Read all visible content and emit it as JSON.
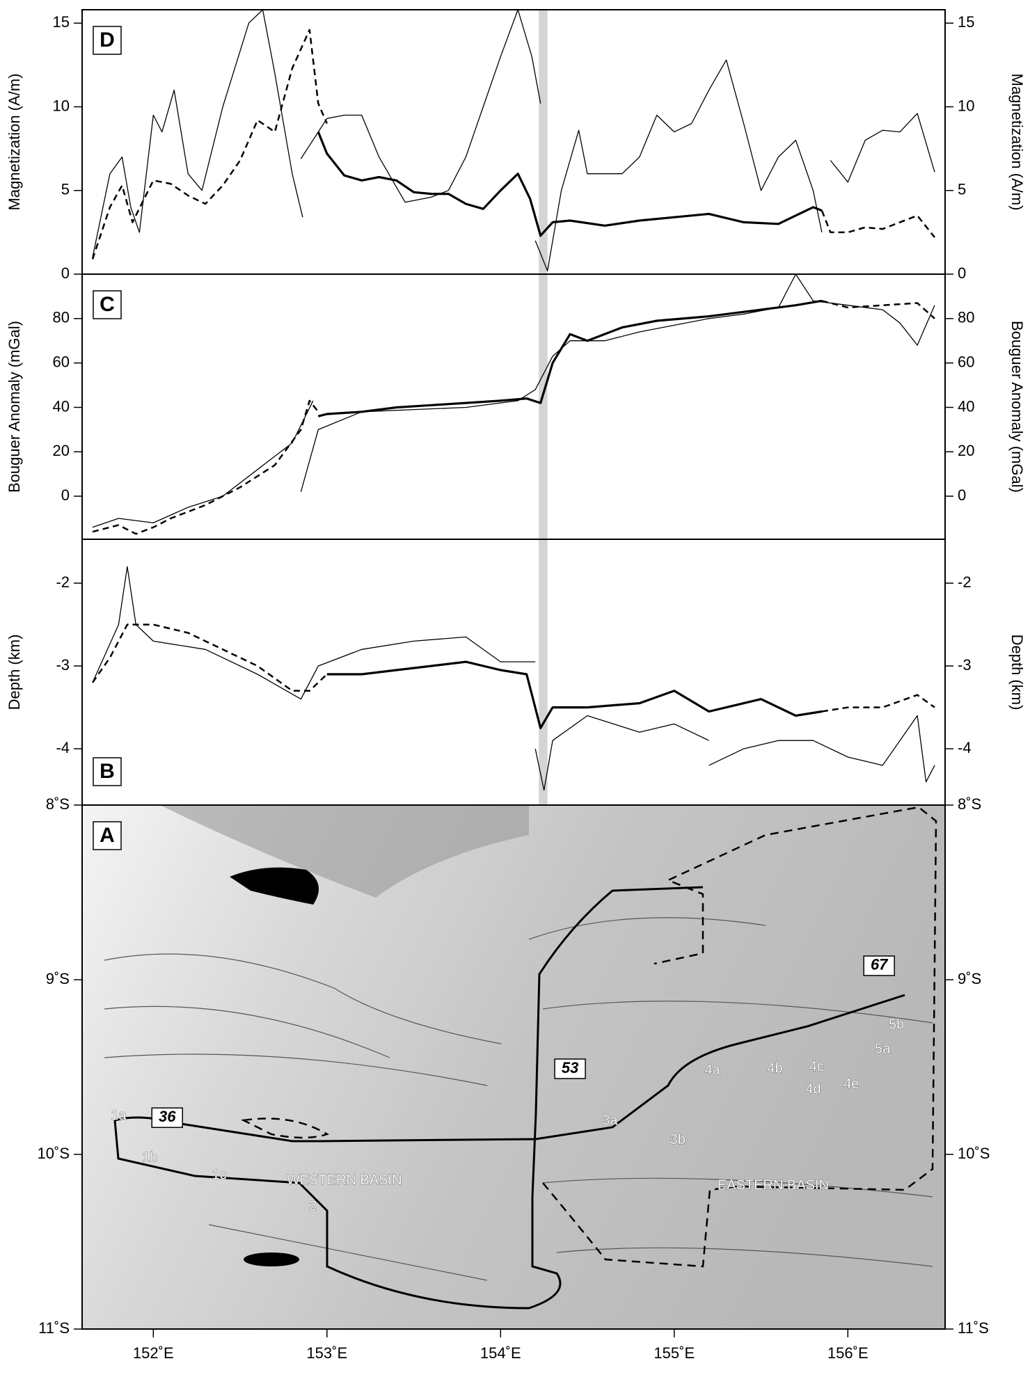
{
  "chart_data": [
    {
      "type": "line",
      "label": "D",
      "ylabel": "Magnetization (A/m)",
      "xlim": [
        151.59,
        156.56
      ],
      "ylim": [
        0,
        15.8
      ],
      "yticks": [
        0,
        5,
        10,
        15
      ],
      "highlight_x": [
        154.22,
        154.27
      ],
      "series": [
        {
          "style": "thin",
          "color": "#000000",
          "x": [
            151.65,
            151.75,
            151.82,
            151.87,
            151.92,
            152.0,
            152.05,
            152.12,
            152.2,
            152.28,
            152.4,
            152.55,
            152.63,
            152.7,
            152.8,
            152.86,
            null,
            152.85,
            153.0,
            153.1,
            153.2,
            153.3,
            153.45,
            153.6,
            153.7,
            153.8,
            153.9,
            154.0,
            154.1,
            154.18,
            154.23,
            null,
            154.2,
            154.27,
            154.35,
            154.45,
            154.5,
            154.6,
            154.7,
            154.8,
            154.9,
            155.0,
            155.1,
            155.2,
            155.3,
            155.4,
            155.5,
            155.6,
            155.7,
            155.8,
            155.85,
            null,
            155.9,
            156.0,
            156.1,
            156.2,
            156.3,
            156.4,
            156.5
          ],
          "values": [
            1,
            6,
            7,
            4,
            2.5,
            9.5,
            8.5,
            11,
            6,
            5,
            10,
            15,
            15.8,
            12,
            6,
            3.4,
            null,
            6.9,
            9.3,
            9.5,
            9.5,
            7,
            4.3,
            4.6,
            5,
            7,
            10,
            13,
            15.8,
            13,
            10.2,
            null,
            2,
            0.2,
            5,
            8.6,
            6,
            6,
            6,
            7,
            9.5,
            8.5,
            9,
            11,
            12.8,
            9,
            5,
            7,
            8,
            5,
            2.5,
            null,
            6.8,
            5.5,
            8,
            8.6,
            8.5,
            9.6,
            6.1
          ]
        },
        {
          "style": "dashed",
          "color": "#000000",
          "x": [
            151.65,
            151.75,
            151.82,
            151.88,
            152.0,
            152.1,
            152.2,
            152.3,
            152.4,
            152.5,
            152.6,
            152.7,
            152.8,
            152.9,
            152.95,
            153.0,
            null,
            155.85,
            155.9,
            156.0,
            156.1,
            156.2,
            156.3,
            156.4,
            156.5
          ],
          "values": [
            0.9,
            4,
            5.3,
            3.1,
            5.6,
            5.4,
            4.7,
            4.2,
            5.3,
            6.8,
            9.2,
            8.5,
            12.3,
            14.6,
            10.2,
            9,
            null,
            3.8,
            2.5,
            2.5,
            2.8,
            2.7,
            3.1,
            3.5,
            2.2
          ]
        },
        {
          "style": "thick",
          "color": "#000000",
          "x": [
            152.95,
            153.0,
            153.1,
            153.2,
            153.3,
            153.4,
            153.5,
            153.6,
            153.7,
            153.8,
            153.9,
            154.0,
            154.1,
            154.17,
            154.23,
            154.3,
            154.4,
            154.6,
            154.8,
            155.0,
            155.2,
            155.4,
            155.6,
            155.8,
            155.85
          ],
          "values": [
            8.5,
            7.2,
            5.9,
            5.6,
            5.8,
            5.6,
            4.9,
            4.8,
            4.8,
            4.2,
            3.9,
            5,
            6,
            4.5,
            2.3,
            3.1,
            3.2,
            2.9,
            3.2,
            3.4,
            3.6,
            3.1,
            3,
            4,
            3.8
          ]
        }
      ]
    },
    {
      "type": "line",
      "label": "C",
      "ylabel": "Bouguer Anomaly (mGal)",
      "xlim": [
        151.59,
        156.56
      ],
      "ylim": [
        -19.4,
        100
      ],
      "yticks": [
        0,
        20,
        40,
        60,
        80
      ],
      "highlight_x": [
        154.22,
        154.27
      ],
      "series": [
        {
          "style": "thin",
          "color": "#000000",
          "x": [
            151.65,
            151.8,
            152.0,
            152.2,
            152.4,
            152.6,
            152.8,
            152.92,
            null,
            152.85,
            152.95,
            153.2,
            153.5,
            153.8,
            154.1,
            154.2,
            154.3,
            154.4,
            154.6,
            154.8,
            155.0,
            155.2,
            155.4,
            155.6,
            155.7,
            155.8,
            156.0,
            156.2,
            156.3,
            156.4,
            156.5
          ],
          "values": [
            -14,
            -10,
            -12,
            -5,
            0,
            12,
            24,
            43,
            null,
            2,
            30,
            38,
            39,
            40,
            43,
            48,
            63,
            70,
            70,
            74,
            77,
            80,
            82,
            85,
            100,
            88,
            86,
            84,
            78,
            68,
            86
          ]
        },
        {
          "style": "dashed",
          "color": "#000000",
          "x": [
            151.65,
            151.8,
            151.9,
            152.0,
            152.1,
            152.3,
            152.5,
            152.7,
            152.85,
            152.9,
            152.95,
            null,
            155.85,
            156.0,
            156.2,
            156.4,
            156.5
          ],
          "values": [
            -16,
            -13,
            -17,
            -14,
            -10,
            -4,
            4,
            14,
            30,
            43,
            38,
            null,
            88,
            85,
            86,
            87,
            80
          ]
        },
        {
          "style": "thick",
          "color": "#000000",
          "x": [
            152.95,
            153.0,
            153.2,
            153.4,
            153.6,
            153.8,
            154.0,
            154.15,
            154.23,
            154.3,
            154.4,
            154.5,
            154.7,
            154.9,
            155.2,
            155.5,
            155.7,
            155.85
          ],
          "values": [
            36,
            37,
            38,
            40,
            41,
            42,
            43,
            44,
            42,
            60,
            73,
            70,
            76,
            79,
            81,
            84,
            86,
            88
          ]
        }
      ]
    },
    {
      "type": "line",
      "label": "B",
      "ylabel": "Depth (km)",
      "xlim": [
        151.59,
        156.56
      ],
      "ylim": [
        -4.68,
        -1.47
      ],
      "yticks": [
        -4,
        -3,
        -2
      ],
      "highlight_x": [
        154.22,
        154.27
      ],
      "series": [
        {
          "style": "thin",
          "color": "#000000",
          "x": [
            151.65,
            151.8,
            151.85,
            151.9,
            152.0,
            152.3,
            152.6,
            152.85,
            152.95,
            153.2,
            153.5,
            153.8,
            154.0,
            154.2,
            null,
            154.2,
            154.25,
            154.3,
            154.5,
            154.8,
            155.0,
            155.2,
            null,
            155.2,
            155.4,
            155.6,
            155.8,
            156.0,
            156.2,
            156.4,
            156.45,
            156.5
          ],
          "values": [
            -3.2,
            -2.5,
            -1.8,
            -2.5,
            -2.7,
            -2.8,
            -3.1,
            -3.4,
            -3.0,
            -2.8,
            -2.7,
            -2.65,
            -2.95,
            -2.95,
            null,
            -4,
            -4.5,
            -3.9,
            -3.6,
            -3.8,
            -3.7,
            -3.9,
            null,
            -4.2,
            -4,
            -3.9,
            -3.9,
            -4.1,
            -4.2,
            -3.6,
            -4.4,
            -4.2
          ]
        },
        {
          "style": "dashed",
          "color": "#000000",
          "x": [
            151.65,
            151.75,
            151.85,
            152.0,
            152.2,
            152.4,
            152.6,
            152.8,
            152.9,
            153.0,
            null,
            155.85,
            156.0,
            156.2,
            156.4,
            156.5
          ],
          "values": [
            -3.2,
            -2.9,
            -2.5,
            -2.5,
            -2.6,
            -2.8,
            -3,
            -3.3,
            -3.3,
            -3.1,
            null,
            -3.55,
            -3.5,
            -3.5,
            -3.35,
            -3.5
          ]
        },
        {
          "style": "thick",
          "color": "#000000",
          "x": [
            153.0,
            153.2,
            153.4,
            153.6,
            153.8,
            154.0,
            154.15,
            154.23,
            154.3,
            154.5,
            154.8,
            155.0,
            155.2,
            155.3,
            155.5,
            155.7,
            155.85
          ],
          "values": [
            -3.1,
            -3.1,
            -3.05,
            -3,
            -2.95,
            -3.05,
            -3.1,
            -3.75,
            -3.5,
            -3.5,
            -3.45,
            -3.3,
            -3.55,
            -3.5,
            -3.4,
            -3.6,
            -3.55
          ]
        }
      ]
    },
    {
      "type": "map",
      "label": "A",
      "xlim": [
        151.59,
        156.56
      ],
      "ylim": [
        -11,
        -8
      ],
      "xticks": [
        {
          "value": 152,
          "label": "152˚E"
        },
        {
          "value": 153,
          "label": "153˚E"
        },
        {
          "value": 154,
          "label": "154˚E"
        },
        {
          "value": 155,
          "label": "155˚E"
        },
        {
          "value": 156,
          "label": "156˚E"
        }
      ],
      "yticks": [
        {
          "value": -8,
          "label": "8˚S"
        },
        {
          "value": -9,
          "label": "9˚S"
        },
        {
          "value": -10,
          "label": "10˚S"
        },
        {
          "value": -11,
          "label": "11˚S"
        }
      ],
      "annotations": [
        {
          "text": "1a",
          "lon": 151.8,
          "lat": -9.78,
          "box": false
        },
        {
          "text": "36",
          "lon": 152.08,
          "lat": -9.79,
          "box": true
        },
        {
          "text": "1b",
          "lon": 151.98,
          "lat": -10.02,
          "box": false
        },
        {
          "text": "1c",
          "lon": 152.38,
          "lat": -10.12,
          "box": false
        },
        {
          "text": "WESTERN BASIN",
          "lon": 153.1,
          "lat": -10.15,
          "box": false
        },
        {
          "text": "2",
          "lon": 152.92,
          "lat": -10.3,
          "box": false
        },
        {
          "text": "53",
          "lon": 154.4,
          "lat": -9.51,
          "box": true
        },
        {
          "text": "3a",
          "lon": 154.63,
          "lat": -9.81,
          "box": false
        },
        {
          "text": "3b",
          "lon": 155.02,
          "lat": -9.92,
          "box": false
        },
        {
          "text": "4a",
          "lon": 155.22,
          "lat": -9.52,
          "box": false
        },
        {
          "text": "4b",
          "lon": 155.58,
          "lat": -9.51,
          "box": false
        },
        {
          "text": "4c",
          "lon": 155.82,
          "lat": -9.5,
          "box": false
        },
        {
          "text": "4d",
          "lon": 155.8,
          "lat": -9.63,
          "box": false
        },
        {
          "text": "4e",
          "lon": 156.02,
          "lat": -9.6,
          "box": false
        },
        {
          "text": "5a",
          "lon": 156.2,
          "lat": -9.4,
          "box": false
        },
        {
          "text": "5b",
          "lon": 156.28,
          "lat": -9.26,
          "box": false
        },
        {
          "text": "EASTERN BASIN",
          "lon": 155.57,
          "lat": -10.18,
          "box": false
        },
        {
          "text": "67",
          "lon": 156.18,
          "lat": -8.92,
          "box": true
        }
      ]
    }
  ]
}
